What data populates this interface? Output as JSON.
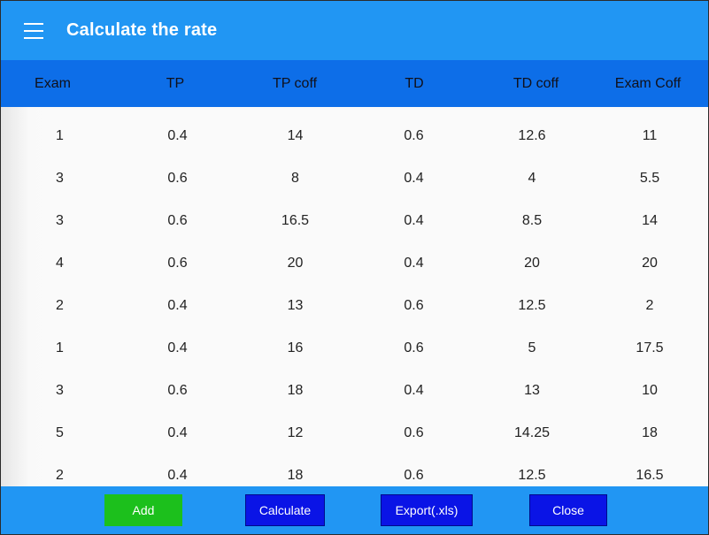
{
  "app": {
    "title": "Calculate the rate"
  },
  "table": {
    "headers": [
      "Exam",
      "TP",
      "TP coff",
      "TD",
      "TD coff",
      "Exam Coff"
    ],
    "rows": [
      [
        "1",
        "0.4",
        "14",
        "0.6",
        "12.6",
        "11"
      ],
      [
        "3",
        "0.6",
        "8",
        "0.4",
        "4",
        "5.5"
      ],
      [
        "3",
        "0.6",
        "16.5",
        "0.4",
        "8.5",
        "14"
      ],
      [
        "4",
        "0.6",
        "20",
        "0.4",
        "20",
        "20"
      ],
      [
        "2",
        "0.4",
        "13",
        "0.6",
        "12.5",
        "2"
      ],
      [
        "1",
        "0.4",
        "16",
        "0.6",
        "5",
        "17.5"
      ],
      [
        "3",
        "0.6",
        "18",
        "0.4",
        "13",
        "10"
      ],
      [
        "5",
        "0.4",
        "12",
        "0.6",
        "14.25",
        "18"
      ],
      [
        "2",
        "0.4",
        "18",
        "0.6",
        "12.5",
        "16.5"
      ]
    ]
  },
  "buttons": {
    "add": "Add",
    "calculate": "Calculate",
    "export": "Export(.xls)",
    "close": "Close"
  },
  "colors": {
    "appbar": "#2196f3",
    "table_header": "#0d6ee8",
    "add_button": "#1cc01c",
    "action_button": "#0a14e6"
  },
  "icons": {
    "menu": "hamburger-menu-icon"
  }
}
